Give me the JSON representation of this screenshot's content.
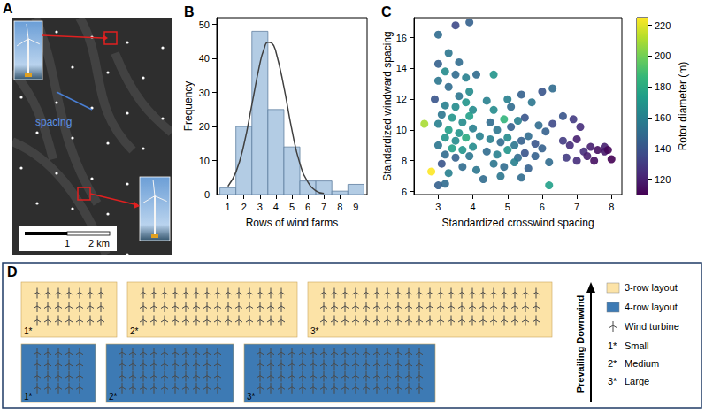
{
  "chart_data": [
    {
      "type": "histogram",
      "title": "B",
      "x_label": "Rows of wind farms",
      "y_label": "Frequency",
      "bins": [
        0.5,
        1.5,
        2.5,
        3.5,
        4.5,
        5.5,
        6.5,
        7.5,
        8.5,
        9.5
      ],
      "counts": [
        2,
        20,
        48,
        25,
        14,
        4,
        4,
        1,
        3
      ],
      "color": "#b3cce4",
      "curve": {
        "type": "line",
        "color": "#404040",
        "x": [
          1,
          1.5,
          2,
          2.5,
          3,
          3.25,
          3.5,
          3.75,
          4,
          4.5,
          5,
          5.5,
          6,
          6.5,
          7
        ],
        "values": [
          2.4,
          6.6,
          14.7,
          26.5,
          38.5,
          42.7,
          44.8,
          44.5,
          42,
          31.6,
          19,
          9.1,
          3.7,
          1.1,
          0.3
        ]
      },
      "xlim": [
        0.3,
        9.7
      ],
      "xticks": [
        1,
        2,
        3,
        4,
        5,
        6,
        7,
        8,
        9
      ],
      "ylim": [
        0,
        52
      ],
      "yticks": [
        0,
        10,
        20,
        30,
        40,
        50
      ],
      "grid": false
    },
    {
      "type": "scatter",
      "title": "C",
      "x_label": "Standardized crosswind spacing",
      "y_label": "Standardized windward spacing",
      "colorbar_label": "Rotor diameter (m)",
      "points": [
        [
          3.0,
          16.2,
          150
        ],
        [
          3.5,
          16.8,
          135
        ],
        [
          3.9,
          17.0,
          145
        ],
        [
          3.3,
          15.0,
          155
        ],
        [
          3.6,
          14.4,
          150
        ],
        [
          3.0,
          14.3,
          145
        ],
        [
          3.2,
          13.8,
          165
        ],
        [
          3.5,
          13.6,
          150
        ],
        [
          3.8,
          13.4,
          160
        ],
        [
          4.1,
          13.6,
          150
        ],
        [
          3.0,
          13.2,
          155
        ],
        [
          3.3,
          12.8,
          150
        ],
        [
          3.6,
          12.2,
          155
        ],
        [
          3.9,
          12.5,
          165
        ],
        [
          2.9,
          12.0,
          140
        ],
        [
          3.2,
          11.6,
          160
        ],
        [
          3.5,
          11.5,
          165
        ],
        [
          3.8,
          11.8,
          170
        ],
        [
          4.0,
          11.3,
          165
        ],
        [
          3.1,
          11.0,
          155
        ],
        [
          3.4,
          10.8,
          170
        ],
        [
          3.7,
          10.5,
          165
        ],
        [
          3.9,
          10.9,
          175
        ],
        [
          3.0,
          10.4,
          160
        ],
        [
          2.6,
          10.4,
          210
        ],
        [
          3.3,
          10.0,
          175
        ],
        [
          3.6,
          9.8,
          170
        ],
        [
          4.0,
          10.1,
          160
        ],
        [
          3.2,
          9.5,
          170
        ],
        [
          3.5,
          9.3,
          165
        ],
        [
          3.8,
          9.5,
          180
        ],
        [
          4.2,
          9.6,
          160
        ],
        [
          3.0,
          9.0,
          155
        ],
        [
          3.4,
          8.8,
          175
        ],
        [
          3.7,
          8.7,
          170
        ],
        [
          4.0,
          8.9,
          165
        ],
        [
          3.2,
          8.4,
          150
        ],
        [
          3.5,
          8.2,
          145
        ],
        [
          3.9,
          8.3,
          155
        ],
        [
          3.1,
          7.8,
          140
        ],
        [
          2.8,
          7.3,
          225
        ],
        [
          3.3,
          7.2,
          160
        ],
        [
          3.7,
          7.6,
          150
        ],
        [
          4.1,
          7.4,
          155
        ],
        [
          3.2,
          6.5,
          150
        ],
        [
          3.0,
          6.4,
          145
        ],
        [
          4.3,
          6.8,
          150
        ],
        [
          4.4,
          11.9,
          160
        ],
        [
          4.6,
          13.6,
          170
        ],
        [
          4.5,
          10.5,
          150
        ],
        [
          4.7,
          10.0,
          155
        ],
        [
          4.9,
          10.7,
          185
        ],
        [
          5.1,
          10.2,
          145
        ],
        [
          5.3,
          10.6,
          160
        ],
        [
          5.5,
          10.8,
          140
        ],
        [
          4.5,
          9.4,
          160
        ],
        [
          4.8,
          9.2,
          150
        ],
        [
          5.0,
          9.5,
          165
        ],
        [
          5.2,
          9.0,
          155
        ],
        [
          5.4,
          9.3,
          145
        ],
        [
          5.6,
          9.6,
          150
        ],
        [
          5.8,
          9.1,
          140
        ],
        [
          4.4,
          8.6,
          150
        ],
        [
          4.7,
          8.4,
          160
        ],
        [
          5.0,
          8.7,
          170
        ],
        [
          5.3,
          8.2,
          150
        ],
        [
          5.5,
          8.5,
          140
        ],
        [
          5.8,
          8.3,
          145
        ],
        [
          4.6,
          7.8,
          155
        ],
        [
          4.9,
          7.6,
          150
        ],
        [
          5.2,
          7.9,
          160
        ],
        [
          5.6,
          7.5,
          145
        ],
        [
          4.8,
          7.0,
          155
        ],
        [
          5.4,
          6.9,
          150
        ],
        [
          6.2,
          6.4,
          175
        ],
        [
          5.1,
          11.5,
          150
        ],
        [
          5.4,
          12.3,
          145
        ],
        [
          5.7,
          11.8,
          155
        ],
        [
          6.0,
          12.5,
          140
        ],
        [
          6.3,
          12.7,
          150
        ],
        [
          5.9,
          10.3,
          150
        ],
        [
          6.1,
          9.9,
          145
        ],
        [
          6.3,
          10.4,
          135
        ],
        [
          6.0,
          8.8,
          145
        ],
        [
          6.2,
          7.9,
          150
        ],
        [
          5.0,
          12.0,
          160
        ],
        [
          4.6,
          11.3,
          165
        ],
        [
          6.6,
          9.3,
          130
        ],
        [
          6.8,
          9.0,
          125
        ],
        [
          7.0,
          9.4,
          120
        ],
        [
          7.2,
          8.6,
          125
        ],
        [
          7.4,
          8.9,
          120
        ],
        [
          7.6,
          8.7,
          115
        ],
        [
          7.8,
          8.9,
          120
        ],
        [
          8.0,
          8.1,
          110
        ],
        [
          6.7,
          8.2,
          130
        ],
        [
          7.0,
          8.0,
          125
        ],
        [
          7.3,
          8.3,
          120
        ],
        [
          7.5,
          8.0,
          115
        ],
        [
          7.8,
          8.6,
          118
        ],
        [
          6.9,
          10.7,
          130
        ],
        [
          7.1,
          10.2,
          125
        ],
        [
          6.6,
          10.9,
          140
        ],
        [
          7.9,
          8.7,
          112
        ]
      ],
      "xlim": [
        2.3,
        8.3
      ],
      "xticks": [
        3,
        4,
        5,
        6,
        7,
        8
      ],
      "ylim": [
        5.8,
        17.3
      ],
      "yticks": [
        6,
        8,
        10,
        12,
        14,
        16
      ],
      "colorbar_range": [
        110,
        225
      ],
      "colorbar_ticks": [
        120,
        140,
        160,
        180,
        200,
        220
      ],
      "grid": false
    }
  ],
  "panel_a": {
    "label": "A",
    "annotation": "spacing",
    "scale_labels": [
      "1",
      "2 km"
    ]
  },
  "panel_d": {
    "label": "D",
    "layouts": [
      {
        "name": "3-row layout",
        "color": "#fce3a7",
        "rows": 3,
        "columns": [
          7,
          14,
          21
        ]
      },
      {
        "name": "4-row layout",
        "color": "#3d7ab4",
        "rows": 4,
        "columns": [
          5,
          10,
          16
        ]
      }
    ],
    "sizes": [
      {
        "mark": "1*",
        "name": "Small"
      },
      {
        "mark": "2*",
        "name": "Medium"
      },
      {
        "mark": "3*",
        "name": "Large"
      }
    ],
    "turbine_label": "Wind turbine",
    "wind_label": "Prevailing Downwind"
  }
}
